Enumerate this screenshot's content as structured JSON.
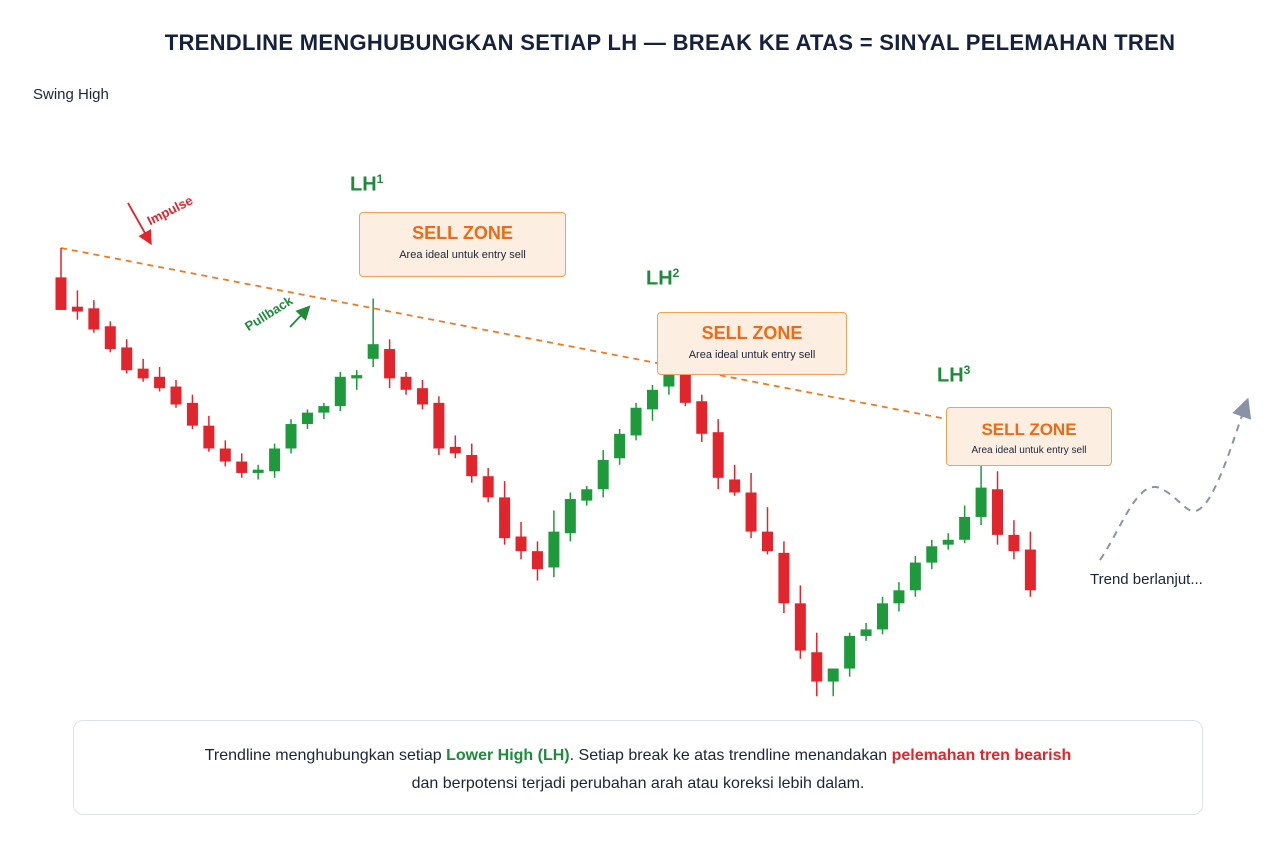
{
  "title": "TRENDLINE MENGHUBUNGKAN SETIAP LH — BREAK KE ATAS = SINYAL PELEMAHAN TREN",
  "colors": {
    "bullish": "#1e9a3c",
    "bearish": "#e0262c",
    "trendline": "#ef7a22",
    "sell_zone_fill": "#fdeee2",
    "sell_zone_border": "#f4a058",
    "dashed_projection": "#8a93a6"
  },
  "labels": {
    "swing_high": "Swing High",
    "lh1": "LH",
    "lh1_sup": "1",
    "lh2": "LH",
    "lh2_sup": "2",
    "lh3": "LH",
    "lh3_sup": "3",
    "impulse": "Impulse",
    "pullback": "Pullback",
    "trend_continues": "Trend berlanjut..."
  },
  "sell_zones": [
    {
      "title": "SELL ZONE",
      "subtitle": "Area ideal untuk entry sell"
    },
    {
      "title": "SELL ZONE",
      "subtitle": "Area ideal untuk entry sell"
    },
    {
      "title": "SELL ZONE",
      "subtitle": "Area ideal untuk entry sell"
    }
  ],
  "footer": {
    "part1": "Trendline menghubungkan setiap ",
    "highlight1": "Lower High (LH)",
    "part2": ". Setiap break ke atas trendline menandakan ",
    "highlight2": "pelemahan tren bearish",
    "part3": "dan berpotensi terjadi perubahan arah atau koreksi lebih dalam."
  },
  "chart_data": {
    "type": "candlestick",
    "trendline": "dashed, connecting Swing High through LH1, LH2, LH3",
    "candles": [
      {
        "o": 0.82,
        "h": 1.0,
        "l": 0.62,
        "c": 0.62
      },
      {
        "o": 0.64,
        "h": 0.74,
        "l": 0.56,
        "c": 0.61
      },
      {
        "o": 0.63,
        "h": 0.68,
        "l": 0.48,
        "c": 0.5
      },
      {
        "o": 0.52,
        "h": 0.55,
        "l": 0.36,
        "c": 0.38
      },
      {
        "o": 0.39,
        "h": 0.44,
        "l": 0.23,
        "c": 0.25
      },
      {
        "o": 0.26,
        "h": 0.32,
        "l": 0.18,
        "c": 0.2
      },
      {
        "o": 0.21,
        "h": 0.27,
        "l": 0.12,
        "c": 0.14
      },
      {
        "o": 0.15,
        "h": 0.19,
        "l": 0.02,
        "c": 0.04
      },
      {
        "o": 0.05,
        "h": 0.1,
        "l": -0.11,
        "c": -0.09
      },
      {
        "o": -0.09,
        "h": -0.03,
        "l": -0.25,
        "c": -0.23
      },
      {
        "o": -0.23,
        "h": -0.18,
        "l": -0.34,
        "c": -0.31
      },
      {
        "o": -0.31,
        "h": -0.26,
        "l": -0.41,
        "c": -0.38
      },
      {
        "o": -0.38,
        "h": -0.33,
        "l": -0.42,
        "c": -0.36
      },
      {
        "o": -0.37,
        "h": -0.2,
        "l": -0.41,
        "c": -0.23
      },
      {
        "o": -0.23,
        "h": -0.05,
        "l": -0.26,
        "c": -0.08
      },
      {
        "o": -0.08,
        "h": 0.01,
        "l": -0.11,
        "c": -0.01
      },
      {
        "o": -0.01,
        "h": 0.05,
        "l": -0.05,
        "c": 0.03
      },
      {
        "o": 0.03,
        "h": 0.24,
        "l": 0.0,
        "c": 0.21
      },
      {
        "o": 0.2,
        "h": 0.25,
        "l": 0.13,
        "c": 0.22
      },
      {
        "o": 0.32,
        "h": 0.69,
        "l": 0.27,
        "c": 0.41
      },
      {
        "o": 0.38,
        "h": 0.44,
        "l": 0.14,
        "c": 0.2
      },
      {
        "o": 0.21,
        "h": 0.24,
        "l": 0.1,
        "c": 0.13
      },
      {
        "o": 0.14,
        "h": 0.19,
        "l": 0.01,
        "c": 0.04
      },
      {
        "o": 0.05,
        "h": 0.09,
        "l": -0.27,
        "c": -0.23
      },
      {
        "o": -0.22,
        "h": -0.15,
        "l": -0.29,
        "c": -0.26
      },
      {
        "o": -0.27,
        "h": -0.2,
        "l": -0.44,
        "c": -0.4
      },
      {
        "o": -0.4,
        "h": -0.35,
        "l": -0.56,
        "c": -0.53
      },
      {
        "o": -0.53,
        "h": -0.43,
        "l": -0.82,
        "c": -0.78
      },
      {
        "o": -0.77,
        "h": -0.68,
        "l": -0.91,
        "c": -0.86
      },
      {
        "o": -0.86,
        "h": -0.8,
        "l": -1.04,
        "c": -0.97
      },
      {
        "o": -0.96,
        "h": -0.61,
        "l": -1.02,
        "c": -0.74
      },
      {
        "o": -0.75,
        "h": -0.5,
        "l": -0.8,
        "c": -0.54
      },
      {
        "o": -0.55,
        "h": -0.46,
        "l": -0.58,
        "c": -0.48
      },
      {
        "o": -0.48,
        "h": -0.24,
        "l": -0.53,
        "c": -0.3
      },
      {
        "o": -0.29,
        "h": -0.11,
        "l": -0.33,
        "c": -0.14
      },
      {
        "o": -0.15,
        "h": 0.05,
        "l": -0.18,
        "c": 0.02
      },
      {
        "o": 0.01,
        "h": 0.16,
        "l": -0.06,
        "c": 0.13
      },
      {
        "o": 0.15,
        "h": 0.51,
        "l": 0.1,
        "c": 0.31
      },
      {
        "o": 0.3,
        "h": 0.35,
        "l": 0.03,
        "c": 0.05
      },
      {
        "o": 0.06,
        "h": 0.1,
        "l": -0.19,
        "c": -0.14
      },
      {
        "o": -0.13,
        "h": -0.05,
        "l": -0.48,
        "c": -0.41
      },
      {
        "o": -0.42,
        "h": -0.33,
        "l": -0.52,
        "c": -0.5
      },
      {
        "o": -0.5,
        "h": -0.38,
        "l": -0.78,
        "c": -0.74
      },
      {
        "o": -0.74,
        "h": -0.59,
        "l": -0.88,
        "c": -0.86
      },
      {
        "o": -0.87,
        "h": -0.8,
        "l": -1.24,
        "c": -1.18
      },
      {
        "o": -1.18,
        "h": -1.07,
        "l": -1.52,
        "c": -1.47
      },
      {
        "o": -1.48,
        "h": -1.36,
        "l": -1.75,
        "c": -1.66
      },
      {
        "o": -1.66,
        "h": -1.58,
        "l": -1.75,
        "c": -1.58
      },
      {
        "o": -1.58,
        "h": -1.36,
        "l": -1.63,
        "c": -1.38
      },
      {
        "o": -1.38,
        "h": -1.3,
        "l": -1.41,
        "c": -1.34
      },
      {
        "o": -1.34,
        "h": -1.14,
        "l": -1.37,
        "c": -1.18
      },
      {
        "o": -1.18,
        "h": -1.05,
        "l": -1.23,
        "c": -1.1
      },
      {
        "o": -1.1,
        "h": -0.89,
        "l": -1.14,
        "c": -0.93
      },
      {
        "o": -0.93,
        "h": -0.79,
        "l": -0.97,
        "c": -0.83
      },
      {
        "o": -0.82,
        "h": -0.75,
        "l": -0.85,
        "c": -0.79
      },
      {
        "o": -0.79,
        "h": -0.58,
        "l": -0.81,
        "c": -0.65
      },
      {
        "o": -0.65,
        "h": -0.09,
        "l": -0.7,
        "c": -0.47
      },
      {
        "o": -0.48,
        "h": -0.37,
        "l": -0.82,
        "c": -0.76
      },
      {
        "o": -0.76,
        "h": -0.67,
        "l": -0.91,
        "c": -0.86
      },
      {
        "o": -0.85,
        "h": -0.74,
        "l": -1.14,
        "c": -1.1
      }
    ]
  }
}
